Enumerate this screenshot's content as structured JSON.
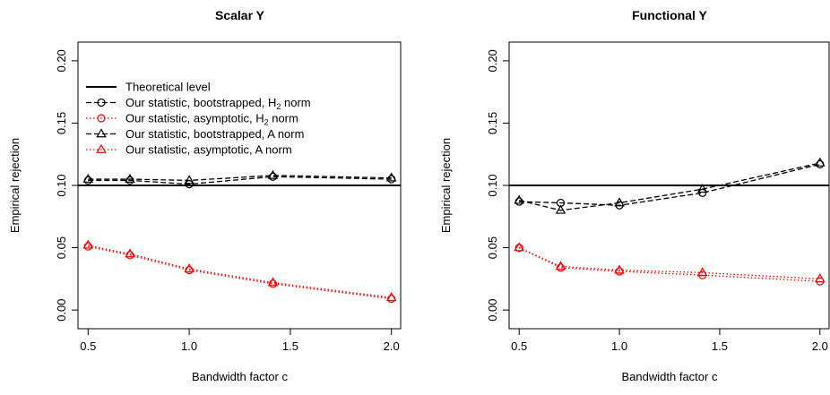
{
  "chart_data": [
    {
      "type": "line",
      "title": "Scalar Y",
      "xlabel": "Bandwidth factor c",
      "ylabel": "Empirical rejection",
      "xlim": [
        0.45,
        2.05
      ],
      "ylim": [
        -0.015,
        0.215
      ],
      "xticks": [
        0.5,
        1.0,
        1.5,
        2.0
      ],
      "xtick_labels": [
        "0.5",
        "1.0",
        "1.5",
        "2.0"
      ],
      "yticks": [
        0.0,
        0.05,
        0.1,
        0.15,
        0.2
      ],
      "ytick_labels": [
        "0.00",
        "0.05",
        "0.10",
        "0.15",
        "0.20"
      ],
      "x": [
        0.5,
        0.707,
        1.0,
        1.414,
        2.0
      ],
      "reference_line": {
        "name": "Theoretical level",
        "y": 0.1,
        "color": "#000000"
      },
      "legend_position": "top-left",
      "series": [
        {
          "name": "Our statistic, bootstrapped, H2 norm",
          "color": "#000000",
          "marker": "circle",
          "dash": "dashed",
          "values": [
            0.104,
            0.104,
            0.101,
            0.107,
            0.105
          ]
        },
        {
          "name": "Our statistic, asymptotic, H2 norm",
          "color": "#ff0000",
          "marker": "circle",
          "dash": "dotted",
          "values": [
            0.051,
            0.044,
            0.032,
            0.021,
            0.009
          ]
        },
        {
          "name": "Our statistic, bootstrapped, A norm",
          "color": "#000000",
          "marker": "triangle",
          "dash": "dashed",
          "values": [
            0.105,
            0.105,
            0.104,
            0.108,
            0.106
          ]
        },
        {
          "name": "Our statistic, asymptotic, A norm",
          "color": "#ff0000",
          "marker": "triangle",
          "dash": "dotted",
          "values": [
            0.052,
            0.045,
            0.033,
            0.022,
            0.01
          ]
        }
      ]
    },
    {
      "type": "line",
      "title": "Functional Y",
      "xlabel": "Bandwidth factor c",
      "ylabel": "Empirical rejection",
      "xlim": [
        0.45,
        2.05
      ],
      "ylim": [
        -0.015,
        0.215
      ],
      "xticks": [
        0.5,
        1.0,
        1.5,
        2.0
      ],
      "xtick_labels": [
        "0.5",
        "1.0",
        "1.5",
        "2.0"
      ],
      "yticks": [
        0.0,
        0.05,
        0.1,
        0.15,
        0.2
      ],
      "ytick_labels": [
        "0.00",
        "0.05",
        "0.10",
        "0.15",
        "0.20"
      ],
      "x": [
        0.5,
        0.707,
        1.0,
        1.414,
        2.0
      ],
      "reference_line": {
        "name": "Theoretical level",
        "y": 0.1,
        "color": "#000000"
      },
      "series": [
        {
          "name": "Our statistic, bootstrapped, H2 norm",
          "color": "#000000",
          "marker": "circle",
          "dash": "dashed",
          "values": [
            0.087,
            0.086,
            0.084,
            0.094,
            0.117
          ]
        },
        {
          "name": "Our statistic, asymptotic, H2 norm",
          "color": "#ff0000",
          "marker": "circle",
          "dash": "dotted",
          "values": [
            0.05,
            0.034,
            0.031,
            0.028,
            0.023
          ]
        },
        {
          "name": "Our statistic, bootstrapped, A norm",
          "color": "#000000",
          "marker": "triangle",
          "dash": "dashed",
          "values": [
            0.088,
            0.08,
            0.086,
            0.097,
            0.118
          ]
        },
        {
          "name": "Our statistic, asymptotic, A norm",
          "color": "#ff0000",
          "marker": "triangle",
          "dash": "dotted",
          "values": [
            0.05,
            0.035,
            0.032,
            0.03,
            0.025
          ]
        }
      ]
    }
  ],
  "legend": {
    "items": [
      {
        "prefix": "Theoretical level",
        "sub": "",
        "suffix": "",
        "color": "#000000",
        "dash": "solid",
        "marker": "none"
      },
      {
        "prefix": "Our statistic,  bootstrapped,  H",
        "sub": "2",
        "suffix": " norm",
        "color": "#000000",
        "dash": "dashed",
        "marker": "circle"
      },
      {
        "prefix": "Our statistic,  asymptotic,  H",
        "sub": "2",
        "suffix": " norm",
        "color": "#ff0000",
        "dash": "dotted",
        "marker": "circle"
      },
      {
        "prefix": "Our statistic,  bootstrapped,  A norm",
        "sub": "",
        "suffix": "",
        "color": "#000000",
        "dash": "dashed",
        "marker": "triangle"
      },
      {
        "prefix": "Our statistic,  asymptotic,  A norm",
        "sub": "",
        "suffix": "",
        "color": "#ff0000",
        "dash": "dotted",
        "marker": "triangle"
      }
    ]
  }
}
